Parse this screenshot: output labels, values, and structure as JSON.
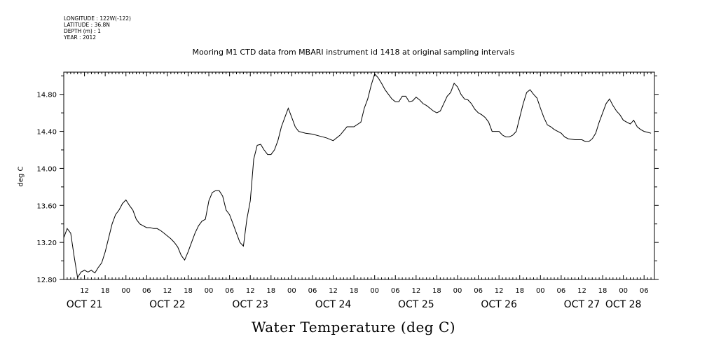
{
  "header": {
    "lines": [
      "LONGITUDE : 122W(-122)",
      "LATITUDE : 36.8N",
      "DEPTH (m) : 1",
      "YEAR : 2012"
    ]
  },
  "chart_data": {
    "type": "line",
    "title": "Mooring M1 CTD data from MBARI instrument id 1418 at original sampling intervals",
    "xlabel": "Water Temperature (deg C)",
    "ylabel": "deg C",
    "ylim": [
      12.8,
      15.04
    ],
    "xlim_hours_note": "",
    "yticks": [
      12.8,
      13.2,
      13.6,
      14.0,
      14.4,
      14.8
    ],
    "ytick_labels": [
      "12.80",
      "13.20",
      "13.60",
      "14.00",
      "14.40",
      "14.80"
    ],
    "x_start": "OCT 21 06:00",
    "x_end": "OCT 28 09:00",
    "hour_labels": [
      {
        "t": "OCT 21 12:00",
        "label": "12"
      },
      {
        "t": "OCT 21 18:00",
        "label": "18"
      },
      {
        "t": "OCT 22 00:00",
        "label": "00"
      },
      {
        "t": "OCT 22 06:00",
        "label": "06"
      },
      {
        "t": "OCT 22 12:00",
        "label": "12"
      },
      {
        "t": "OCT 22 18:00",
        "label": "18"
      },
      {
        "t": "OCT 23 00:00",
        "label": "00"
      },
      {
        "t": "OCT 23 06:00",
        "label": "06"
      },
      {
        "t": "OCT 23 12:00",
        "label": "12"
      },
      {
        "t": "OCT 23 18:00",
        "label": "18"
      },
      {
        "t": "OCT 24 00:00",
        "label": "00"
      },
      {
        "t": "OCT 24 06:00",
        "label": "06"
      },
      {
        "t": "OCT 24 12:00",
        "label": "12"
      },
      {
        "t": "OCT 24 18:00",
        "label": "18"
      },
      {
        "t": "OCT 25 00:00",
        "label": "00"
      },
      {
        "t": "OCT 25 06:00",
        "label": "06"
      },
      {
        "t": "OCT 25 12:00",
        "label": "12"
      },
      {
        "t": "OCT 25 18:00",
        "label": "18"
      },
      {
        "t": "OCT 26 00:00",
        "label": "00"
      },
      {
        "t": "OCT 26 06:00",
        "label": "06"
      },
      {
        "t": "OCT 26 12:00",
        "label": "12"
      },
      {
        "t": "OCT 26 18:00",
        "label": "18"
      },
      {
        "t": "OCT 27 00:00",
        "label": "00"
      },
      {
        "t": "OCT 27 06:00",
        "label": "06"
      },
      {
        "t": "OCT 27 12:00",
        "label": "12"
      },
      {
        "t": "OCT 27 18:00",
        "label": "18"
      },
      {
        "t": "OCT 28 00:00",
        "label": "00"
      },
      {
        "t": "OCT 28 06:00",
        "label": "06"
      }
    ],
    "day_labels": [
      {
        "t": "OCT 21 12:00",
        "label": "OCT 21"
      },
      {
        "t": "OCT 22 12:00",
        "label": "OCT 22"
      },
      {
        "t": "OCT 23 12:00",
        "label": "OCT 23"
      },
      {
        "t": "OCT 24 12:00",
        "label": "OCT 24"
      },
      {
        "t": "OCT 25 12:00",
        "label": "OCT 25"
      },
      {
        "t": "OCT 26 12:00",
        "label": "OCT 26"
      },
      {
        "t": "OCT 27 12:00",
        "label": "OCT 27"
      },
      {
        "t": "OCT 28 00:00",
        "label": "OCT 28"
      }
    ],
    "series": [
      {
        "values": [
          [
            "OCT 21 06:00",
            13.25
          ],
          [
            "OCT 21 07:00",
            13.35
          ],
          [
            "OCT 21 08:00",
            13.3
          ],
          [
            "OCT 21 09:00",
            13.05
          ],
          [
            "OCT 21 10:00",
            12.82
          ],
          [
            "OCT 21 11:00",
            12.88
          ],
          [
            "OCT 21 12:00",
            12.9
          ],
          [
            "OCT 21 13:00",
            12.88
          ],
          [
            "OCT 21 14:00",
            12.9
          ],
          [
            "OCT 21 15:00",
            12.87
          ],
          [
            "OCT 21 16:00",
            12.93
          ],
          [
            "OCT 21 17:00",
            12.98
          ],
          [
            "OCT 21 18:00",
            13.1
          ],
          [
            "OCT 21 19:00",
            13.25
          ],
          [
            "OCT 21 20:00",
            13.4
          ],
          [
            "OCT 21 21:00",
            13.5
          ],
          [
            "OCT 21 22:00",
            13.55
          ],
          [
            "OCT 21 23:00",
            13.62
          ],
          [
            "OCT 22 00:00",
            13.66
          ],
          [
            "OCT 22 01:00",
            13.6
          ],
          [
            "OCT 22 02:00",
            13.55
          ],
          [
            "OCT 22 03:00",
            13.45
          ],
          [
            "OCT 22 04:00",
            13.4
          ],
          [
            "OCT 22 05:00",
            13.38
          ],
          [
            "OCT 22 06:00",
            13.36
          ],
          [
            "OCT 22 07:00",
            13.36
          ],
          [
            "OCT 22 08:00",
            13.35
          ],
          [
            "OCT 22 09:00",
            13.35
          ],
          [
            "OCT 22 10:00",
            13.33
          ],
          [
            "OCT 22 11:00",
            13.3
          ],
          [
            "OCT 22 12:00",
            13.27
          ],
          [
            "OCT 22 13:00",
            13.24
          ],
          [
            "OCT 22 14:00",
            13.2
          ],
          [
            "OCT 22 15:00",
            13.15
          ],
          [
            "OCT 22 16:00",
            13.06
          ],
          [
            "OCT 22 17:00",
            13.01
          ],
          [
            "OCT 22 18:00",
            13.1
          ],
          [
            "OCT 22 19:00",
            13.2
          ],
          [
            "OCT 22 20:00",
            13.3
          ],
          [
            "OCT 22 21:00",
            13.38
          ],
          [
            "OCT 22 22:00",
            13.43
          ],
          [
            "OCT 22 23:00",
            13.45
          ],
          [
            "OCT 23 00:00",
            13.65
          ],
          [
            "OCT 23 01:00",
            13.74
          ],
          [
            "OCT 23 02:00",
            13.76
          ],
          [
            "OCT 23 03:00",
            13.76
          ],
          [
            "OCT 23 04:00",
            13.7
          ],
          [
            "OCT 23 05:00",
            13.55
          ],
          [
            "OCT 23 06:00",
            13.5
          ],
          [
            "OCT 23 07:00",
            13.4
          ],
          [
            "OCT 23 08:00",
            13.3
          ],
          [
            "OCT 23 09:00",
            13.2
          ],
          [
            "OCT 23 10:00",
            13.16
          ],
          [
            "OCT 23 11:00",
            13.45
          ],
          [
            "OCT 23 12:00",
            13.65
          ],
          [
            "OCT 23 13:00",
            14.1
          ],
          [
            "OCT 23 14:00",
            14.25
          ],
          [
            "OCT 23 15:00",
            14.26
          ],
          [
            "OCT 23 16:00",
            14.2
          ],
          [
            "OCT 23 17:00",
            14.15
          ],
          [
            "OCT 23 18:00",
            14.15
          ],
          [
            "OCT 23 19:00",
            14.2
          ],
          [
            "OCT 23 20:00",
            14.3
          ],
          [
            "OCT 23 21:00",
            14.45
          ],
          [
            "OCT 23 22:00",
            14.55
          ],
          [
            "OCT 23 23:00",
            14.65
          ],
          [
            "OCT 24 00:00",
            14.55
          ],
          [
            "OCT 24 01:00",
            14.45
          ],
          [
            "OCT 24 02:00",
            14.4
          ],
          [
            "OCT 24 04:00",
            14.38
          ],
          [
            "OCT 24 06:00",
            14.37
          ],
          [
            "OCT 24 08:00",
            14.35
          ],
          [
            "OCT 24 10:00",
            14.33
          ],
          [
            "OCT 24 12:00",
            14.3
          ],
          [
            "OCT 24 14:00",
            14.36
          ],
          [
            "OCT 24 16:00",
            14.45
          ],
          [
            "OCT 24 18:00",
            14.45
          ],
          [
            "OCT 24 20:00",
            14.5
          ],
          [
            "OCT 24 21:00",
            14.65
          ],
          [
            "OCT 24 22:00",
            14.75
          ],
          [
            "OCT 24 23:00",
            14.9
          ],
          [
            "OCT 25 00:00",
            15.02
          ],
          [
            "OCT 25 01:00",
            14.98
          ],
          [
            "OCT 25 02:00",
            14.92
          ],
          [
            "OCT 25 03:00",
            14.85
          ],
          [
            "OCT 25 04:00",
            14.8
          ],
          [
            "OCT 25 05:00",
            14.75
          ],
          [
            "OCT 25 06:00",
            14.72
          ],
          [
            "OCT 25 07:00",
            14.72
          ],
          [
            "OCT 25 08:00",
            14.78
          ],
          [
            "OCT 25 09:00",
            14.78
          ],
          [
            "OCT 25 10:00",
            14.72
          ],
          [
            "OCT 25 11:00",
            14.73
          ],
          [
            "OCT 25 12:00",
            14.77
          ],
          [
            "OCT 25 13:00",
            14.74
          ],
          [
            "OCT 25 14:00",
            14.7
          ],
          [
            "OCT 25 15:00",
            14.68
          ],
          [
            "OCT 25 16:00",
            14.65
          ],
          [
            "OCT 25 17:00",
            14.62
          ],
          [
            "OCT 25 18:00",
            14.6
          ],
          [
            "OCT 25 19:00",
            14.62
          ],
          [
            "OCT 25 20:00",
            14.7
          ],
          [
            "OCT 25 21:00",
            14.78
          ],
          [
            "OCT 25 22:00",
            14.82
          ],
          [
            "OCT 25 23:00",
            14.92
          ],
          [
            "OCT 26 00:00",
            14.88
          ],
          [
            "OCT 26 01:00",
            14.8
          ],
          [
            "OCT 26 02:00",
            14.75
          ],
          [
            "OCT 26 03:00",
            14.74
          ],
          [
            "OCT 26 04:00",
            14.7
          ],
          [
            "OCT 26 05:00",
            14.64
          ],
          [
            "OCT 26 06:00",
            14.6
          ],
          [
            "OCT 26 07:00",
            14.58
          ],
          [
            "OCT 26 08:00",
            14.55
          ],
          [
            "OCT 26 09:00",
            14.5
          ],
          [
            "OCT 26 10:00",
            14.4
          ],
          [
            "OCT 26 11:00",
            14.4
          ],
          [
            "OCT 26 12:00",
            14.4
          ],
          [
            "OCT 26 13:00",
            14.36
          ],
          [
            "OCT 26 14:00",
            14.34
          ],
          [
            "OCT 26 15:00",
            14.34
          ],
          [
            "OCT 26 16:00",
            14.36
          ],
          [
            "OCT 26 17:00",
            14.4
          ],
          [
            "OCT 26 18:00",
            14.55
          ],
          [
            "OCT 26 19:00",
            14.7
          ],
          [
            "OCT 26 20:00",
            14.82
          ],
          [
            "OCT 26 21:00",
            14.85
          ],
          [
            "OCT 26 22:00",
            14.8
          ],
          [
            "OCT 26 23:00",
            14.76
          ],
          [
            "OCT 27 00:00",
            14.65
          ],
          [
            "OCT 27 01:00",
            14.55
          ],
          [
            "OCT 27 02:00",
            14.47
          ],
          [
            "OCT 27 03:00",
            14.45
          ],
          [
            "OCT 27 04:00",
            14.42
          ],
          [
            "OCT 27 05:00",
            14.4
          ],
          [
            "OCT 27 06:00",
            14.38
          ],
          [
            "OCT 27 07:00",
            14.34
          ],
          [
            "OCT 27 08:00",
            14.32
          ],
          [
            "OCT 27 10:00",
            14.31
          ],
          [
            "OCT 27 12:00",
            14.31
          ],
          [
            "OCT 27 13:00",
            14.29
          ],
          [
            "OCT 27 14:00",
            14.29
          ],
          [
            "OCT 27 15:00",
            14.32
          ],
          [
            "OCT 27 16:00",
            14.38
          ],
          [
            "OCT 27 17:00",
            14.5
          ],
          [
            "OCT 27 18:00",
            14.6
          ],
          [
            "OCT 27 19:00",
            14.7
          ],
          [
            "OCT 27 20:00",
            14.75
          ],
          [
            "OCT 27 21:00",
            14.68
          ],
          [
            "OCT 27 22:00",
            14.62
          ],
          [
            "OCT 27 23:00",
            14.58
          ],
          [
            "OCT 28 00:00",
            14.52
          ],
          [
            "OCT 28 01:00",
            14.5
          ],
          [
            "OCT 28 02:00",
            14.48
          ],
          [
            "OCT 28 03:00",
            14.52
          ],
          [
            "OCT 28 04:00",
            14.45
          ],
          [
            "OCT 28 05:00",
            14.42
          ],
          [
            "OCT 28 06:00",
            14.4
          ],
          [
            "OCT 28 07:00",
            14.39
          ],
          [
            "OCT 28 08:00",
            14.38
          ]
        ]
      }
    ],
    "grid": false,
    "line_color": "#000000"
  }
}
